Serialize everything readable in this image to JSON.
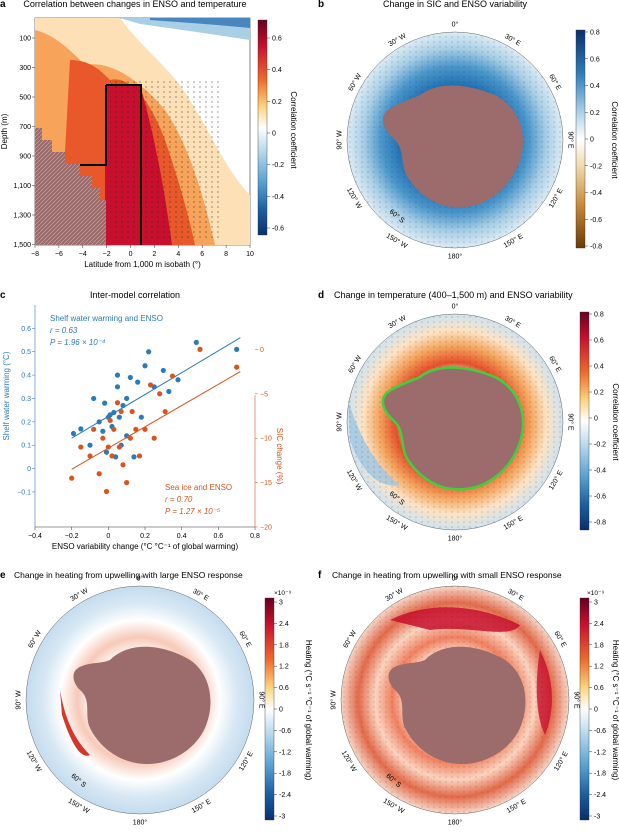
{
  "panels": {
    "a": {
      "letter": "a",
      "title": "Correlation between changes in ENSO and temperature"
    },
    "b": {
      "letter": "b",
      "title": "Change in SIC and ENSO variability"
    },
    "c": {
      "letter": "c",
      "title": "Inter-model correlation"
    },
    "d": {
      "letter": "d",
      "title": "Change in temperature (400–1,500 m) and ENSO variability"
    },
    "e": {
      "letter": "e",
      "title": "Change in heating from upwelling with large ENSO response"
    },
    "f": {
      "letter": "f",
      "title": "Change in heating from upwelling with small ENSO response"
    }
  },
  "polar_labels": {
    "top": "0°",
    "bottom": "180°",
    "left_mid": "90° W",
    "right_mid": "90° E",
    "ul1": "30° W",
    "ul2": "60° W",
    "ll1": "120° W",
    "ll2": "150° W",
    "ur1": "30° E",
    "ur2": "60° E",
    "lr1": "120° E",
    "lr2": "150° E",
    "lat": "60° S"
  },
  "colorbars": {
    "a": {
      "label": "Correlation coefficient",
      "ticks": [
        "0.6",
        "0.4",
        "0.2",
        "0",
        "-0.2",
        "-0.4",
        "-0.6"
      ]
    },
    "b": {
      "label": "Correlation coefficient",
      "ticks": [
        "0.8",
        "0.6",
        "0.4",
        "0.2",
        "0",
        "-0.2",
        "-0.4",
        "-0.6",
        "-0.8"
      ]
    },
    "d": {
      "label": "Correlation coefficient",
      "ticks": [
        "0.8",
        "0.6",
        "0.4",
        "0.2",
        "0",
        "-0.2",
        "-0.4",
        "-0.6",
        "-0.8"
      ]
    },
    "e": {
      "label": "Heating (°C s⁻¹ °C⁻¹ of global warming)",
      "exp": "×10⁻⁹",
      "ticks": [
        "3",
        "2.4",
        "1.8",
        "1.2",
        "0.6",
        "0",
        "-0.6",
        "-1.2",
        "-1.8",
        "-2.4",
        "-3"
      ]
    },
    "f": {
      "label": "Heating (°C s⁻¹ °C⁻¹ of global warming)",
      "exp": "×10⁻⁹",
      "ticks": [
        "3",
        "2.4",
        "1.8",
        "1.2",
        "0.6",
        "0",
        "-0.6",
        "-1.2",
        "-1.8",
        "-2.4",
        "-3"
      ]
    }
  },
  "colors": {
    "blue": "#2b7bba",
    "orange": "#d9541e",
    "land": "#9c6b6b"
  },
  "chart_data": [
    {
      "panel": "a",
      "type": "heatmap",
      "xlabel": "Latitude from 1,000 m isobath (°)",
      "ylabel": "Depth (m)",
      "xticks": [
        -8,
        -6,
        -4,
        -2,
        0,
        2,
        4,
        6,
        8,
        10
      ],
      "yticks": [
        "100",
        "300",
        "500",
        "700",
        "900",
        "1,100",
        "1,300",
        "1,500"
      ],
      "xlim": [
        -8,
        10
      ],
      "ylim": [
        1500,
        0
      ]
    },
    {
      "panel": "c",
      "type": "scatter",
      "xlabel": "ENSO variability change (°C °C⁻¹ of global warming)",
      "ylabel": "Shelf water warming (°C)",
      "ylabel_right": "SIC change (%)",
      "xticks": [
        "-0.4",
        "-0.2",
        "0",
        "0.2",
        "0.4",
        "0.6",
        "0.8"
      ],
      "yticks_left": [
        "0.6",
        "0.5",
        "0.4",
        "0.3",
        "0.2",
        "0.1",
        "0",
        "-0.1"
      ],
      "yticks_right": [
        "0",
        "-5",
        "-10",
        "-15",
        "-20"
      ],
      "xlim": [
        -0.4,
        0.8
      ],
      "ylim_left": [
        -0.25,
        0.7
      ],
      "ylim_right": [
        -20,
        5
      ],
      "series": [
        {
          "name": "Shelf water warming and ENSO",
          "r": "r = 0.63",
          "p": "P = 1.96 × 10⁻⁴",
          "axis": "left",
          "points": [
            [
              -0.19,
              0.15
            ],
            [
              -0.15,
              0.17
            ],
            [
              -0.1,
              0.1
            ],
            [
              -0.05,
              0.2
            ],
            [
              -0.03,
              0.16
            ],
            [
              -0.02,
              0.28
            ],
            [
              -0.01,
              0.07
            ],
            [
              0.0,
              0.22
            ],
            [
              0.01,
              0.23
            ],
            [
              0.02,
              0.18
            ],
            [
              0.03,
              0.24
            ],
            [
              0.04,
              0.05
            ],
            [
              0.05,
              0.4
            ],
            [
              0.06,
              0.22
            ],
            [
              0.07,
              0.1
            ],
            [
              0.08,
              0.27
            ],
            [
              0.1,
              0.14
            ],
            [
              0.1,
              0.3
            ],
            [
              0.12,
              0.39
            ],
            [
              0.14,
              0.05
            ],
            [
              0.16,
              0.37
            ],
            [
              0.18,
              0.22
            ],
            [
              0.2,
              0.44
            ],
            [
              0.22,
              0.5
            ],
            [
              0.25,
              0.35
            ],
            [
              0.3,
              0.42
            ],
            [
              0.33,
              0.33
            ],
            [
              0.38,
              0.38
            ],
            [
              0.48,
              0.54
            ],
            [
              0.7,
              0.51
            ],
            [
              0.05,
              0.35
            ],
            [
              -0.08,
              0.3
            ]
          ],
          "fit": [
            [
              -0.2,
              0.13
            ],
            [
              0.72,
              0.56
            ]
          ]
        },
        {
          "name": "Sea ice and ENSO",
          "r": "r = 0.70",
          "p": "P = 1.27 × 10⁻⁵",
          "axis": "right",
          "points": [
            [
              -0.2,
              -14.5
            ],
            [
              -0.15,
              -11
            ],
            [
              -0.1,
              -12
            ],
            [
              -0.08,
              -9
            ],
            [
              -0.05,
              -14
            ],
            [
              -0.03,
              -10
            ],
            [
              -0.01,
              -16
            ],
            [
              0.0,
              -11
            ],
            [
              0.01,
              -8
            ],
            [
              0.02,
              -12
            ],
            [
              0.03,
              -9
            ],
            [
              0.05,
              -6
            ],
            [
              0.06,
              -11
            ],
            [
              0.07,
              -7
            ],
            [
              0.08,
              -13
            ],
            [
              0.1,
              -15
            ],
            [
              0.12,
              -10
            ],
            [
              0.13,
              -7
            ],
            [
              0.15,
              -9
            ],
            [
              0.17,
              -12
            ],
            [
              0.2,
              -9
            ],
            [
              0.23,
              -4
            ],
            [
              0.25,
              -10
            ],
            [
              0.28,
              -5
            ],
            [
              0.31,
              -7
            ],
            [
              0.35,
              -3
            ],
            [
              0.5,
              0
            ],
            [
              0.7,
              -2
            ]
          ],
          "fit": [
            [
              -0.2,
              -13.5
            ],
            [
              0.72,
              -2.5
            ]
          ]
        }
      ]
    }
  ]
}
